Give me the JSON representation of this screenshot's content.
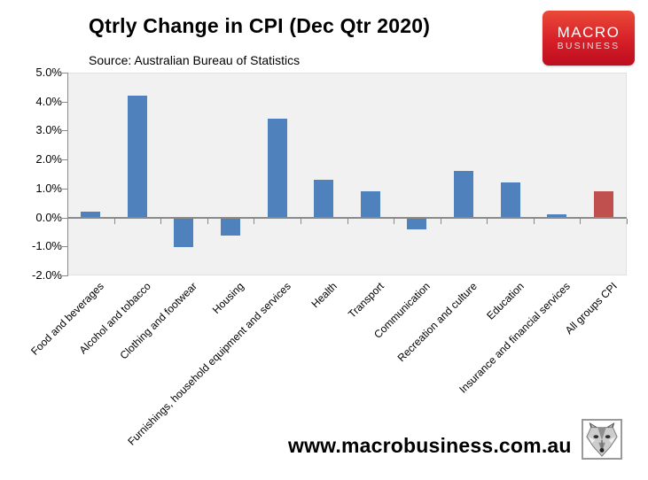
{
  "title": "Qtrly Change in CPI (Dec Qtr 2020)",
  "subtitle": "Source: Australian Bureau of Statistics",
  "logo": {
    "line1": "MACRO",
    "line2": "BUSINESS",
    "bg_top": "#ea4a38",
    "bg_bottom": "#bd0d1f"
  },
  "footer": {
    "url": "www.macrobusiness.com.au",
    "icon": "wolf-icon"
  },
  "chart_data": {
    "type": "bar",
    "title": "Qtrly Change in CPI (Dec Qtr 2020)",
    "subtitle": "Source: Australian Bureau of Statistics",
    "categories": [
      "Food and beverages",
      "Alcohol and tobacco",
      "Clothing and footwear",
      "Housing",
      "Furnishings, household equipment and services",
      "Health",
      "Transport",
      "Communication",
      "Recreation and culture",
      "Education",
      "Insurance and financial services",
      "All groups CPI"
    ],
    "values": [
      0.2,
      4.2,
      -1.0,
      -0.6,
      3.4,
      1.3,
      0.9,
      -0.4,
      1.6,
      1.2,
      0.1,
      0.9
    ],
    "unit": "%",
    "bar_color": "#4f81bd",
    "highlight_index": 11,
    "highlight_color": "#c0504d",
    "y_ticks": [
      "5.0%",
      "4.0%",
      "3.0%",
      "2.0%",
      "1.0%",
      "0.0%",
      "-1.0%",
      "-2.0%"
    ],
    "ylim": [
      -2,
      5
    ],
    "xlabel": "",
    "ylabel": "",
    "grid": false,
    "legend": "none",
    "plot_bg": "#f1f1f1",
    "axis_color": "#8a8a8a"
  }
}
